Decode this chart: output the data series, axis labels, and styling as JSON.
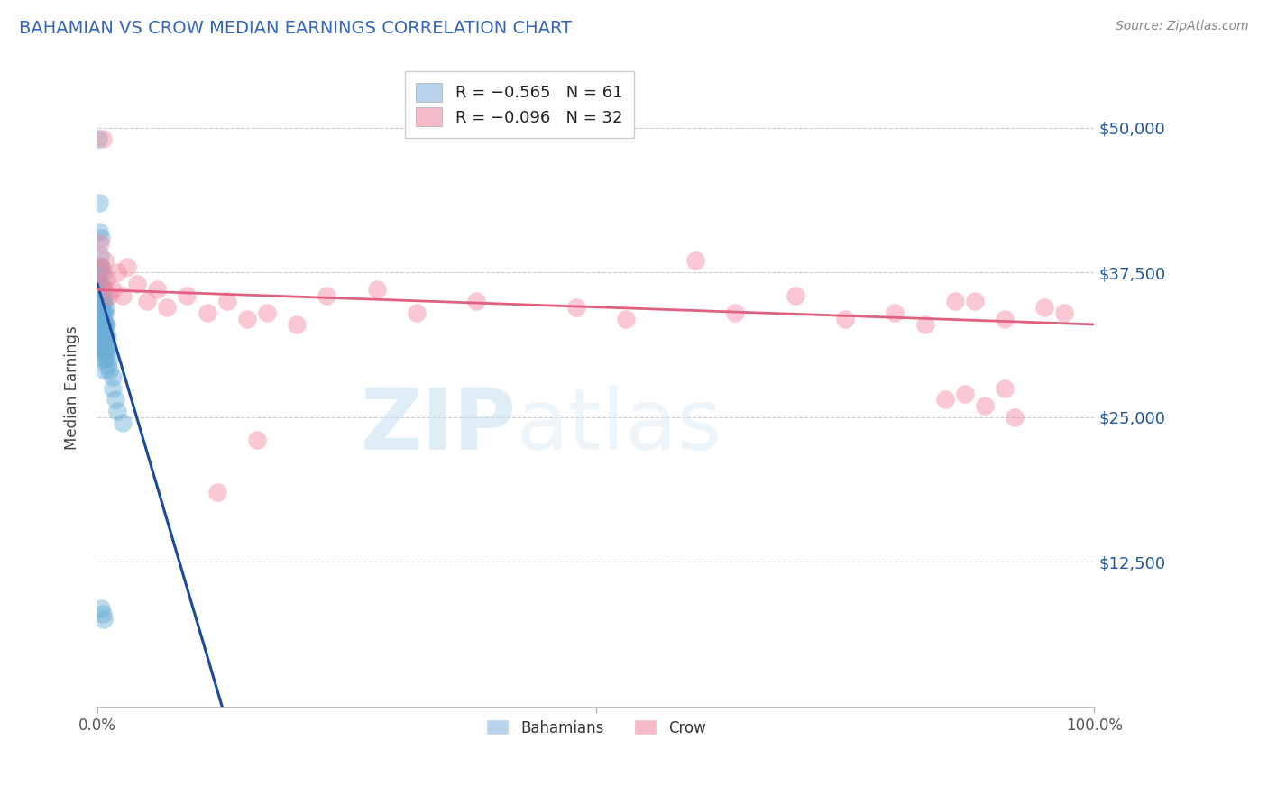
{
  "title": "BAHAMIAN VS CROW MEDIAN EARNINGS CORRELATION CHART",
  "source_text": "Source: ZipAtlas.com",
  "ylabel": "Median Earnings",
  "xlim": [
    0,
    1.0
  ],
  "ylim": [
    0,
    55000
  ],
  "yticks": [
    0,
    12500,
    25000,
    37500,
    50000
  ],
  "ytick_labels": [
    "",
    "$12,500",
    "$25,000",
    "$37,500",
    "$50,000"
  ],
  "xtick_labels": [
    "0.0%",
    "100.0%"
  ],
  "bahamian_color": "#6aaed6",
  "crow_color": "#f4879c",
  "trend_blue": "#1a4a9e",
  "trend_pink": "#e06080",
  "watermark_zip": "ZIP",
  "watermark_atlas": "atlas",
  "bahamian_points": [
    [
      0.001,
      49000
    ],
    [
      0.002,
      43500
    ],
    [
      0.002,
      41000
    ],
    [
      0.003,
      39000
    ],
    [
      0.003,
      37500
    ],
    [
      0.003,
      36500
    ],
    [
      0.003,
      35500
    ],
    [
      0.003,
      34500
    ],
    [
      0.003,
      38000
    ],
    [
      0.003,
      36000
    ],
    [
      0.003,
      33500
    ],
    [
      0.004,
      40500
    ],
    [
      0.004,
      38000
    ],
    [
      0.004,
      36500
    ],
    [
      0.004,
      35000
    ],
    [
      0.004,
      34000
    ],
    [
      0.004,
      33000
    ],
    [
      0.004,
      32000
    ],
    [
      0.004,
      31500
    ],
    [
      0.005,
      37500
    ],
    [
      0.005,
      36000
    ],
    [
      0.005,
      35000
    ],
    [
      0.005,
      34000
    ],
    [
      0.005,
      33000
    ],
    [
      0.005,
      32000
    ],
    [
      0.005,
      31000
    ],
    [
      0.005,
      30500
    ],
    [
      0.006,
      36000
    ],
    [
      0.006,
      35000
    ],
    [
      0.006,
      34000
    ],
    [
      0.006,
      33000
    ],
    [
      0.006,
      32000
    ],
    [
      0.006,
      31000
    ],
    [
      0.006,
      30000
    ],
    [
      0.007,
      35500
    ],
    [
      0.007,
      34000
    ],
    [
      0.007,
      33000
    ],
    [
      0.007,
      32000
    ],
    [
      0.007,
      31000
    ],
    [
      0.007,
      30000
    ],
    [
      0.007,
      29000
    ],
    [
      0.008,
      34500
    ],
    [
      0.008,
      33000
    ],
    [
      0.008,
      32000
    ],
    [
      0.008,
      31000
    ],
    [
      0.009,
      33000
    ],
    [
      0.009,
      31500
    ],
    [
      0.009,
      30500
    ],
    [
      0.01,
      32000
    ],
    [
      0.01,
      31000
    ],
    [
      0.01,
      29500
    ],
    [
      0.012,
      30000
    ],
    [
      0.012,
      29000
    ],
    [
      0.015,
      28500
    ],
    [
      0.015,
      27500
    ],
    [
      0.018,
      26500
    ],
    [
      0.02,
      25500
    ],
    [
      0.025,
      24500
    ],
    [
      0.004,
      8500
    ],
    [
      0.005,
      8000
    ],
    [
      0.006,
      7500
    ]
  ],
  "crow_points": [
    [
      0.005,
      49000
    ],
    [
      0.003,
      40000
    ],
    [
      0.004,
      38000
    ],
    [
      0.005,
      36500
    ],
    [
      0.007,
      38500
    ],
    [
      0.009,
      37000
    ],
    [
      0.012,
      35500
    ],
    [
      0.015,
      36000
    ],
    [
      0.02,
      37500
    ],
    [
      0.025,
      35500
    ],
    [
      0.03,
      38000
    ],
    [
      0.04,
      36500
    ],
    [
      0.05,
      35000
    ],
    [
      0.06,
      36000
    ],
    [
      0.07,
      34500
    ],
    [
      0.09,
      35500
    ],
    [
      0.11,
      34000
    ],
    [
      0.13,
      35000
    ],
    [
      0.15,
      33500
    ],
    [
      0.17,
      34000
    ],
    [
      0.2,
      33000
    ],
    [
      0.23,
      35500
    ],
    [
      0.28,
      36000
    ],
    [
      0.32,
      34000
    ],
    [
      0.38,
      35000
    ],
    [
      0.48,
      34500
    ],
    [
      0.53,
      33500
    ],
    [
      0.6,
      38500
    ],
    [
      0.64,
      34000
    ],
    [
      0.7,
      35500
    ],
    [
      0.75,
      33500
    ],
    [
      0.8,
      34000
    ],
    [
      0.83,
      33000
    ],
    [
      0.86,
      35000
    ],
    [
      0.88,
      35000
    ],
    [
      0.91,
      33500
    ],
    [
      0.95,
      34500
    ],
    [
      0.97,
      34000
    ],
    [
      0.12,
      18500
    ],
    [
      0.16,
      23000
    ],
    [
      0.85,
      26500
    ],
    [
      0.87,
      27000
    ],
    [
      0.89,
      26000
    ],
    [
      0.91,
      27500
    ],
    [
      0.92,
      25000
    ]
  ],
  "blue_trend_x0": 0.0,
  "blue_trend_y0": 36500,
  "blue_trend_x1": 0.125,
  "blue_trend_y1": 0,
  "pink_trend_x0": 0.0,
  "pink_trend_y0": 36000,
  "pink_trend_x1": 1.0,
  "pink_trend_y1": 33000
}
